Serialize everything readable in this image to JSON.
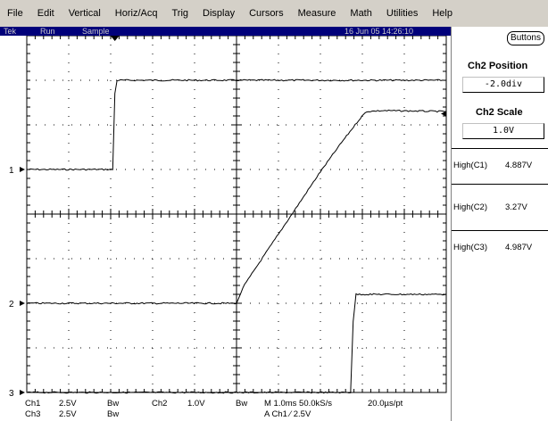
{
  "menu": [
    "File",
    "Edit",
    "Vertical",
    "Horiz/Acq",
    "Trig",
    "Display",
    "Cursors",
    "Measure",
    "Math",
    "Utilities",
    "Help"
  ],
  "status": {
    "brand": "Tek",
    "run_state": "Run",
    "mode": "Sample",
    "datetime": "16 Jun 05 14:26:10"
  },
  "panel": {
    "buttons_label": "Buttons",
    "position_title": "Ch2 Position",
    "position_value": "-2.0div",
    "scale_title": "Ch2 Scale",
    "scale_value": "1.0V"
  },
  "measurements": [
    {
      "label": "High(C1)",
      "value": "4.887V"
    },
    {
      "label": "High(C2)",
      "value": "3.27V"
    },
    {
      "label": "High(C3)",
      "value": "4.987V"
    }
  ],
  "channel_markers": [
    "1",
    "2",
    "3"
  ],
  "readout": {
    "ch1_name": "Ch1",
    "ch1_scale": "2.5V",
    "ch1_bw": "Bw",
    "ch2_name": "Ch2",
    "ch2_scale": "1.0V",
    "ch2_bw": "Bw",
    "ch3_name": "Ch3",
    "ch3_scale": "2.5V",
    "ch3_bw": "Bw",
    "timebase": "M 1.0ms 50.0kS/s",
    "resolution": "20.0µs/pt",
    "trigger": "A  Ch1  ∕  2.5V"
  },
  "colors": {
    "menu_bg": "#d4d0c8",
    "status_bg": "#00007a",
    "trace": "#000000",
    "graticule": "#000000"
  },
  "chart_data": {
    "type": "line",
    "title": "",
    "xlabel": "",
    "ylabel": "",
    "xlim": [
      0,
      10
    ],
    "ylim": [
      0,
      8
    ],
    "grid": true,
    "x_unit": "div",
    "y_unit": "div",
    "series": [
      {
        "name": "",
        "channel": "Ch1",
        "x": [
          0,
          2.05,
          2.1,
          2.15,
          10
        ],
        "y": [
          5,
          5,
          6.7,
          7,
          7
        ]
      },
      {
        "name": "",
        "channel": "Ch2",
        "x": [
          0,
          5.0,
          5.05,
          5.15,
          5.5,
          6,
          6.5,
          7,
          7.5,
          7.95,
          8.1,
          8.5,
          10
        ],
        "y": [
          2,
          2,
          2.1,
          2.35,
          2.85,
          3.55,
          4.25,
          4.95,
          5.6,
          6.15,
          6.3,
          6.32,
          6.3
        ]
      },
      {
        "name": "",
        "channel": "Ch3",
        "x": [
          0,
          7.72,
          7.78,
          7.85,
          10
        ],
        "y": [
          0,
          0,
          1.6,
          2.2,
          2.2
        ]
      }
    ]
  }
}
